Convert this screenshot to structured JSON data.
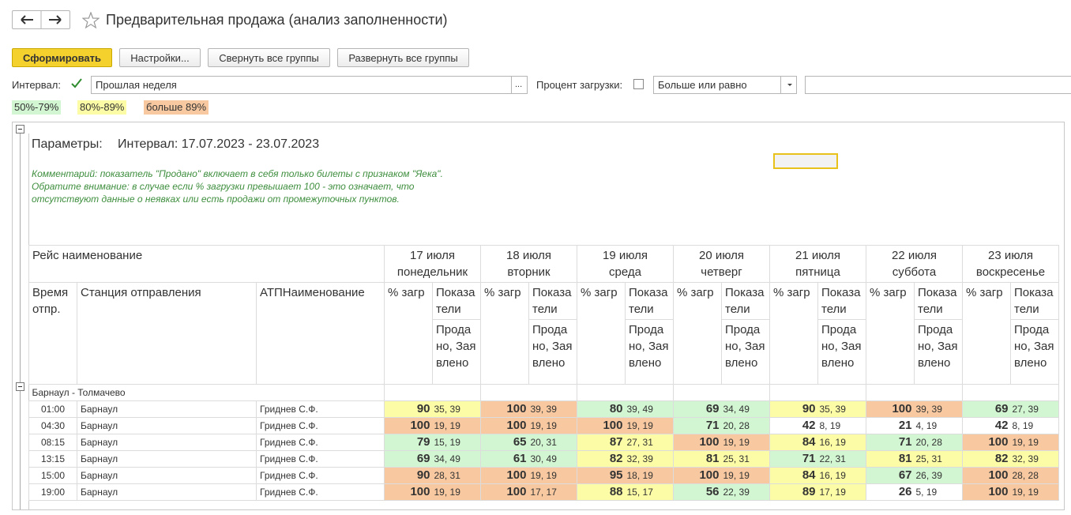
{
  "header": {
    "title": "Предварительная продажа (анализ заполненности)"
  },
  "buttons": [
    "Сформировать",
    "Настройки...",
    "Свернуть все группы",
    "Развернуть все группы"
  ],
  "filters": {
    "interval_label": "Интервал:",
    "interval_value": "Прошлая неделя",
    "ellipsis": "...",
    "load_label": "Процент загрузки:",
    "load_condition": "Больше или равно"
  },
  "legend": [
    {
      "label": "50%-79%",
      "color": "#d2f5d2"
    },
    {
      "label": "80%-89%",
      "color": "#fdfca6"
    },
    {
      "label": "больше 89%",
      "color": "#f8c9a0"
    }
  ],
  "report": {
    "params_label": "Параметры:",
    "params_value": "Интервал: 17.07.2023 - 23.07.2023",
    "comment": "Комментарий: показатель \"Продано\" включает в себя только билеты с признаком \"Яека\". Обратите внимание: в случае если % загрузки превышает 100 - это означает, что отсутствуют данные о неявках или есть продажи от промежуточных пунктов.",
    "col_route": "Рейс наименование",
    "col_time": "Время отпр.",
    "col_station": "Станция отправления",
    "col_atp": "АТПНаименование",
    "days": [
      {
        "date": "17 июля",
        "weekday": "понедельник"
      },
      {
        "date": "18 июля",
        "weekday": "вторник"
      },
      {
        "date": "19 июля",
        "weekday": "среда"
      },
      {
        "date": "20 июля",
        "weekday": "четверг"
      },
      {
        "date": "21 июля",
        "weekday": "пятница"
      },
      {
        "date": "22 июля",
        "weekday": "суббота"
      },
      {
        "date": "23 июля",
        "weekday": "воскресенье"
      }
    ],
    "sub_pct": "% загр",
    "sub_ind": "Показатели",
    "sub_sold": "Продано, Заявлено",
    "group": "Барнаул - Толмачево",
    "rows": [
      {
        "time": "01:00",
        "station": "Барнаул",
        "atp": "Гриднев С.Ф.",
        "cells": [
          {
            "pct": 90,
            "detail": "35, 39",
            "level": 1
          },
          {
            "pct": 100,
            "detail": "39, 39",
            "level": 2
          },
          {
            "pct": 80,
            "detail": "39, 49",
            "level": 0
          },
          {
            "pct": 69,
            "detail": "34, 49",
            "level": 0
          },
          {
            "pct": 90,
            "detail": "35, 39",
            "level": 1
          },
          {
            "pct": 100,
            "detail": "39, 39",
            "level": 2
          },
          {
            "pct": 69,
            "detail": "27, 39",
            "level": 0
          }
        ]
      },
      {
        "time": "04:30",
        "station": "Барнаул",
        "atp": "Гриднев С.Ф.",
        "cells": [
          {
            "pct": 100,
            "detail": "19, 19",
            "level": 2
          },
          {
            "pct": 100,
            "detail": "19, 19",
            "level": 2
          },
          {
            "pct": 100,
            "detail": "19, 19",
            "level": 2
          },
          {
            "pct": 71,
            "detail": "20, 28",
            "level": 0
          },
          {
            "pct": 42,
            "detail": "8, 19",
            "level": null
          },
          {
            "pct": 21,
            "detail": "4, 19",
            "level": null
          },
          {
            "pct": 42,
            "detail": "8, 19",
            "level": null
          }
        ]
      },
      {
        "time": "08:15",
        "station": "Барнаул",
        "atp": "Гриднев С.Ф.",
        "cells": [
          {
            "pct": 79,
            "detail": "15, 19",
            "level": 0
          },
          {
            "pct": 65,
            "detail": "20, 31",
            "level": 0
          },
          {
            "pct": 87,
            "detail": "27, 31",
            "level": 1
          },
          {
            "pct": 100,
            "detail": "19, 19",
            "level": 2
          },
          {
            "pct": 84,
            "detail": "16, 19",
            "level": 1
          },
          {
            "pct": 71,
            "detail": "20, 28",
            "level": 0
          },
          {
            "pct": 100,
            "detail": "19, 19",
            "level": 2
          }
        ]
      },
      {
        "time": "13:15",
        "station": "Барнаул",
        "atp": "Гриднев С.Ф.",
        "cells": [
          {
            "pct": 69,
            "detail": "34, 49",
            "level": 0
          },
          {
            "pct": 61,
            "detail": "30, 49",
            "level": 0
          },
          {
            "pct": 82,
            "detail": "32, 39",
            "level": 1
          },
          {
            "pct": 81,
            "detail": "25, 31",
            "level": 1
          },
          {
            "pct": 71,
            "detail": "22, 31",
            "level": 0
          },
          {
            "pct": 81,
            "detail": "25, 31",
            "level": 1
          },
          {
            "pct": 82,
            "detail": "32, 39",
            "level": 1
          }
        ]
      },
      {
        "time": "15:00",
        "station": "Барнаул",
        "atp": "Гриднев С.Ф.",
        "cells": [
          {
            "pct": 90,
            "detail": "28, 31",
            "level": 2
          },
          {
            "pct": 100,
            "detail": "19, 19",
            "level": 2
          },
          {
            "pct": 95,
            "detail": "18, 19",
            "level": 2
          },
          {
            "pct": 100,
            "detail": "19, 19",
            "level": 2
          },
          {
            "pct": 84,
            "detail": "16, 19",
            "level": 1
          },
          {
            "pct": 67,
            "detail": "26, 39",
            "level": 0
          },
          {
            "pct": 100,
            "detail": "28, 28",
            "level": 2
          }
        ]
      },
      {
        "time": "19:00",
        "station": "Барнаул",
        "atp": "Гриднев С.Ф.",
        "cells": [
          {
            "pct": 100,
            "detail": "19, 19",
            "level": 2
          },
          {
            "pct": 100,
            "detail": "17, 17",
            "level": 2
          },
          {
            "pct": 88,
            "detail": "15, 17",
            "level": 1
          },
          {
            "pct": 56,
            "detail": "22, 39",
            "level": 0
          },
          {
            "pct": 89,
            "detail": "17, 19",
            "level": 1
          },
          {
            "pct": 26,
            "detail": "5, 19",
            "level": null
          },
          {
            "pct": 100,
            "detail": "19, 19",
            "level": 2
          }
        ]
      }
    ]
  }
}
